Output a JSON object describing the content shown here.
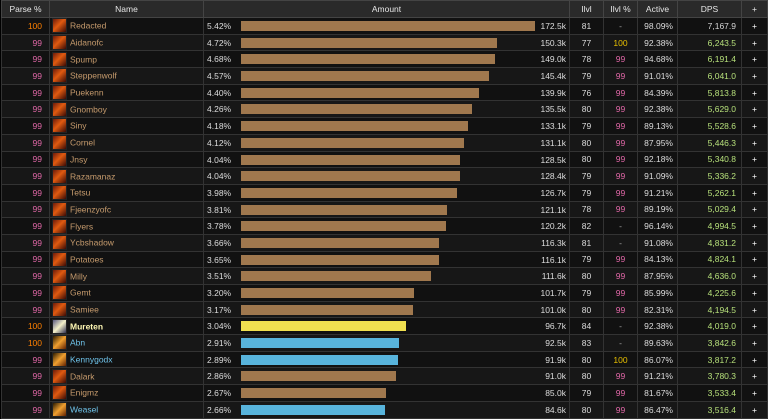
{
  "headers": {
    "parse": "Parse %",
    "name": "Name",
    "amount": "Amount",
    "ilvl": "Ilvl",
    "ilvl_pct": "Ilvl %",
    "active": "Active",
    "dps": "DPS",
    "plus": "+"
  },
  "colors": {
    "demon_hunter": "#a0784e",
    "mage": "#f0e050",
    "priest_shaman": "#58b4dc",
    "dh_name": "#c69b6d",
    "mage_name": "#fff8b4",
    "blue_name": "#6fc3ea"
  },
  "rows": [
    {
      "parse": "100",
      "parse_color": "orange",
      "name": "Redacted",
      "icon": "dh",
      "name_color": "dh",
      "pct": "5.42%",
      "fraction": 1.0,
      "amount": "172.5k",
      "ilvl": "81",
      "ilvl_pct": "-",
      "ilvl_pct_color": "dim",
      "active": "98.09%",
      "dps": "7,167.9",
      "dps_color": "#d6d6d6"
    },
    {
      "parse": "99",
      "parse_color": "pink",
      "name": "Aidanofc",
      "icon": "dh",
      "name_color": "dh",
      "pct": "4.72%",
      "fraction": 0.871,
      "amount": "150.3k",
      "ilvl": "77",
      "ilvl_pct": "100",
      "ilvl_pct_color": "#e8c000",
      "active": "92.38%",
      "dps": "6,243.5",
      "dps_color": "#b6e07a"
    },
    {
      "parse": "99",
      "parse_color": "pink",
      "name": "Spump",
      "icon": "dh",
      "name_color": "dh",
      "pct": "4.68%",
      "fraction": 0.864,
      "amount": "149.0k",
      "ilvl": "78",
      "ilvl_pct": "99",
      "ilvl_pct_color": "pink",
      "active": "94.68%",
      "dps": "6,191.4",
      "dps_color": "#b6e07a"
    },
    {
      "parse": "99",
      "parse_color": "pink",
      "name": "Steppenwolf",
      "icon": "dh",
      "name_color": "dh",
      "pct": "4.57%",
      "fraction": 0.843,
      "amount": "145.4k",
      "ilvl": "79",
      "ilvl_pct": "99",
      "ilvl_pct_color": "pink",
      "active": "91.01%",
      "dps": "6,041.0",
      "dps_color": "#b6e07a"
    },
    {
      "parse": "99",
      "parse_color": "pink",
      "name": "Puekenn",
      "icon": "dh",
      "name_color": "dh",
      "pct": "4.40%",
      "fraction": 0.811,
      "amount": "139.9k",
      "ilvl": "76",
      "ilvl_pct": "99",
      "ilvl_pct_color": "pink",
      "active": "84.39%",
      "dps": "5,813.8",
      "dps_color": "#b6e07a"
    },
    {
      "parse": "99",
      "parse_color": "pink",
      "name": "Gnomboy",
      "icon": "dh",
      "name_color": "dh",
      "pct": "4.26%",
      "fraction": 0.786,
      "amount": "135.5k",
      "ilvl": "80",
      "ilvl_pct": "99",
      "ilvl_pct_color": "pink",
      "active": "92.38%",
      "dps": "5,629.0",
      "dps_color": "#b6e07a"
    },
    {
      "parse": "99",
      "parse_color": "pink",
      "name": "Siny",
      "icon": "dh",
      "name_color": "dh",
      "pct": "4.18%",
      "fraction": 0.772,
      "amount": "133.1k",
      "ilvl": "79",
      "ilvl_pct": "99",
      "ilvl_pct_color": "pink",
      "active": "89.13%",
      "dps": "5,528.6",
      "dps_color": "#b6e07a"
    },
    {
      "parse": "99",
      "parse_color": "pink",
      "name": "Cornel",
      "icon": "dh",
      "name_color": "dh",
      "pct": "4.12%",
      "fraction": 0.76,
      "amount": "131.1k",
      "ilvl": "80",
      "ilvl_pct": "99",
      "ilvl_pct_color": "pink",
      "active": "87.95%",
      "dps": "5,446.3",
      "dps_color": "#b6e07a"
    },
    {
      "parse": "99",
      "parse_color": "pink",
      "name": "Jnsy",
      "icon": "dh",
      "name_color": "dh",
      "pct": "4.04%",
      "fraction": 0.745,
      "amount": "128.5k",
      "ilvl": "80",
      "ilvl_pct": "99",
      "ilvl_pct_color": "pink",
      "active": "92.18%",
      "dps": "5,340.8",
      "dps_color": "#b6e07a"
    },
    {
      "parse": "99",
      "parse_color": "pink",
      "name": "Razamanaz",
      "icon": "dh",
      "name_color": "dh",
      "pct": "4.04%",
      "fraction": 0.744,
      "amount": "128.4k",
      "ilvl": "79",
      "ilvl_pct": "99",
      "ilvl_pct_color": "pink",
      "active": "91.09%",
      "dps": "5,336.2",
      "dps_color": "#b6e07a"
    },
    {
      "parse": "99",
      "parse_color": "pink",
      "name": "Tetsu",
      "icon": "dh",
      "name_color": "dh",
      "pct": "3.98%",
      "fraction": 0.735,
      "amount": "126.7k",
      "ilvl": "79",
      "ilvl_pct": "99",
      "ilvl_pct_color": "pink",
      "active": "91.21%",
      "dps": "5,262.1",
      "dps_color": "#b6e07a"
    },
    {
      "parse": "99",
      "parse_color": "pink",
      "name": "Fjeenzyofc",
      "icon": "dh",
      "name_color": "dh",
      "pct": "3.81%",
      "fraction": 0.702,
      "amount": "121.1k",
      "ilvl": "78",
      "ilvl_pct": "99",
      "ilvl_pct_color": "pink",
      "active": "89.19%",
      "dps": "5,029.4",
      "dps_color": "#b6e07a"
    },
    {
      "parse": "99",
      "parse_color": "pink",
      "name": "Flyers",
      "icon": "dh",
      "name_color": "dh",
      "pct": "3.78%",
      "fraction": 0.697,
      "amount": "120.2k",
      "ilvl": "82",
      "ilvl_pct": "-",
      "ilvl_pct_color": "dim",
      "active": "96.14%",
      "dps": "4,994.5",
      "dps_color": "#b6e07a"
    },
    {
      "parse": "99",
      "parse_color": "pink",
      "name": "Ycbshadow",
      "icon": "dh",
      "name_color": "dh",
      "pct": "3.66%",
      "fraction": 0.674,
      "amount": "116.3k",
      "ilvl": "81",
      "ilvl_pct": "-",
      "ilvl_pct_color": "dim",
      "active": "91.08%",
      "dps": "4,831.2",
      "dps_color": "#b6e07a"
    },
    {
      "parse": "99",
      "parse_color": "pink",
      "name": "Potatoes",
      "icon": "dh",
      "name_color": "dh",
      "pct": "3.65%",
      "fraction": 0.673,
      "amount": "116.1k",
      "ilvl": "79",
      "ilvl_pct": "99",
      "ilvl_pct_color": "pink",
      "active": "84.13%",
      "dps": "4,824.1",
      "dps_color": "#b6e07a"
    },
    {
      "parse": "99",
      "parse_color": "pink",
      "name": "Milly",
      "icon": "dh",
      "name_color": "dh",
      "pct": "3.51%",
      "fraction": 0.647,
      "amount": "111.6k",
      "ilvl": "80",
      "ilvl_pct": "99",
      "ilvl_pct_color": "pink",
      "active": "87.95%",
      "dps": "4,636.0",
      "dps_color": "#b6e07a"
    },
    {
      "parse": "99",
      "parse_color": "pink",
      "name": "Gemt",
      "icon": "dh",
      "name_color": "dh",
      "pct": "3.20%",
      "fraction": 0.59,
      "amount": "101.7k",
      "ilvl": "79",
      "ilvl_pct": "99",
      "ilvl_pct_color": "pink",
      "active": "85.99%",
      "dps": "4,225.6",
      "dps_color": "#b6e07a"
    },
    {
      "parse": "99",
      "parse_color": "pink",
      "name": "Samiee",
      "icon": "dh",
      "name_color": "dh",
      "pct": "3.17%",
      "fraction": 0.586,
      "amount": "101.0k",
      "ilvl": "80",
      "ilvl_pct": "99",
      "ilvl_pct_color": "pink",
      "active": "82.31%",
      "dps": "4,194.5",
      "dps_color": "#b6e07a"
    },
    {
      "parse": "100",
      "parse_color": "orange",
      "name": "Mureten",
      "icon": "pr",
      "name_color": "mage",
      "pct": "3.04%",
      "fraction": 0.561,
      "amount": "96.7k",
      "ilvl": "84",
      "ilvl_pct": "-",
      "ilvl_pct_color": "dim",
      "active": "92.38%",
      "dps": "4,019.0",
      "dps_color": "#b6e07a"
    },
    {
      "parse": "100",
      "parse_color": "orange",
      "name": "Abn",
      "icon": "mg",
      "name_color": "blue",
      "pct": "2.91%",
      "fraction": 0.537,
      "amount": "92.5k",
      "ilvl": "83",
      "ilvl_pct": "-",
      "ilvl_pct_color": "dim",
      "active": "89.63%",
      "dps": "3,842.6",
      "dps_color": "#b6e07a"
    },
    {
      "parse": "99",
      "parse_color": "pink",
      "name": "Kennygodx",
      "icon": "mg",
      "name_color": "blue",
      "pct": "2.89%",
      "fraction": 0.533,
      "amount": "91.9k",
      "ilvl": "80",
      "ilvl_pct": "100",
      "ilvl_pct_color": "#e8c000",
      "active": "86.07%",
      "dps": "3,817.2",
      "dps_color": "#b6e07a"
    },
    {
      "parse": "99",
      "parse_color": "pink",
      "name": "Dalark",
      "icon": "dh",
      "name_color": "dh",
      "pct": "2.86%",
      "fraction": 0.528,
      "amount": "91.0k",
      "ilvl": "80",
      "ilvl_pct": "99",
      "ilvl_pct_color": "pink",
      "active": "91.21%",
      "dps": "3,780.3",
      "dps_color": "#b6e07a"
    },
    {
      "parse": "99",
      "parse_color": "pink",
      "name": "Enigmz",
      "icon": "dh",
      "name_color": "dh",
      "pct": "2.67%",
      "fraction": 0.493,
      "amount": "85.0k",
      "ilvl": "79",
      "ilvl_pct": "99",
      "ilvl_pct_color": "pink",
      "active": "81.67%",
      "dps": "3,533.4",
      "dps_color": "#b6e07a"
    },
    {
      "parse": "99",
      "parse_color": "pink",
      "name": "Weasel",
      "icon": "mg",
      "name_color": "blue",
      "pct": "2.66%",
      "fraction": 0.491,
      "amount": "84.6k",
      "ilvl": "80",
      "ilvl_pct": "99",
      "ilvl_pct_color": "pink",
      "active": "86.47%",
      "dps": "3,516.4",
      "dps_color": "#b6e07a"
    }
  ]
}
